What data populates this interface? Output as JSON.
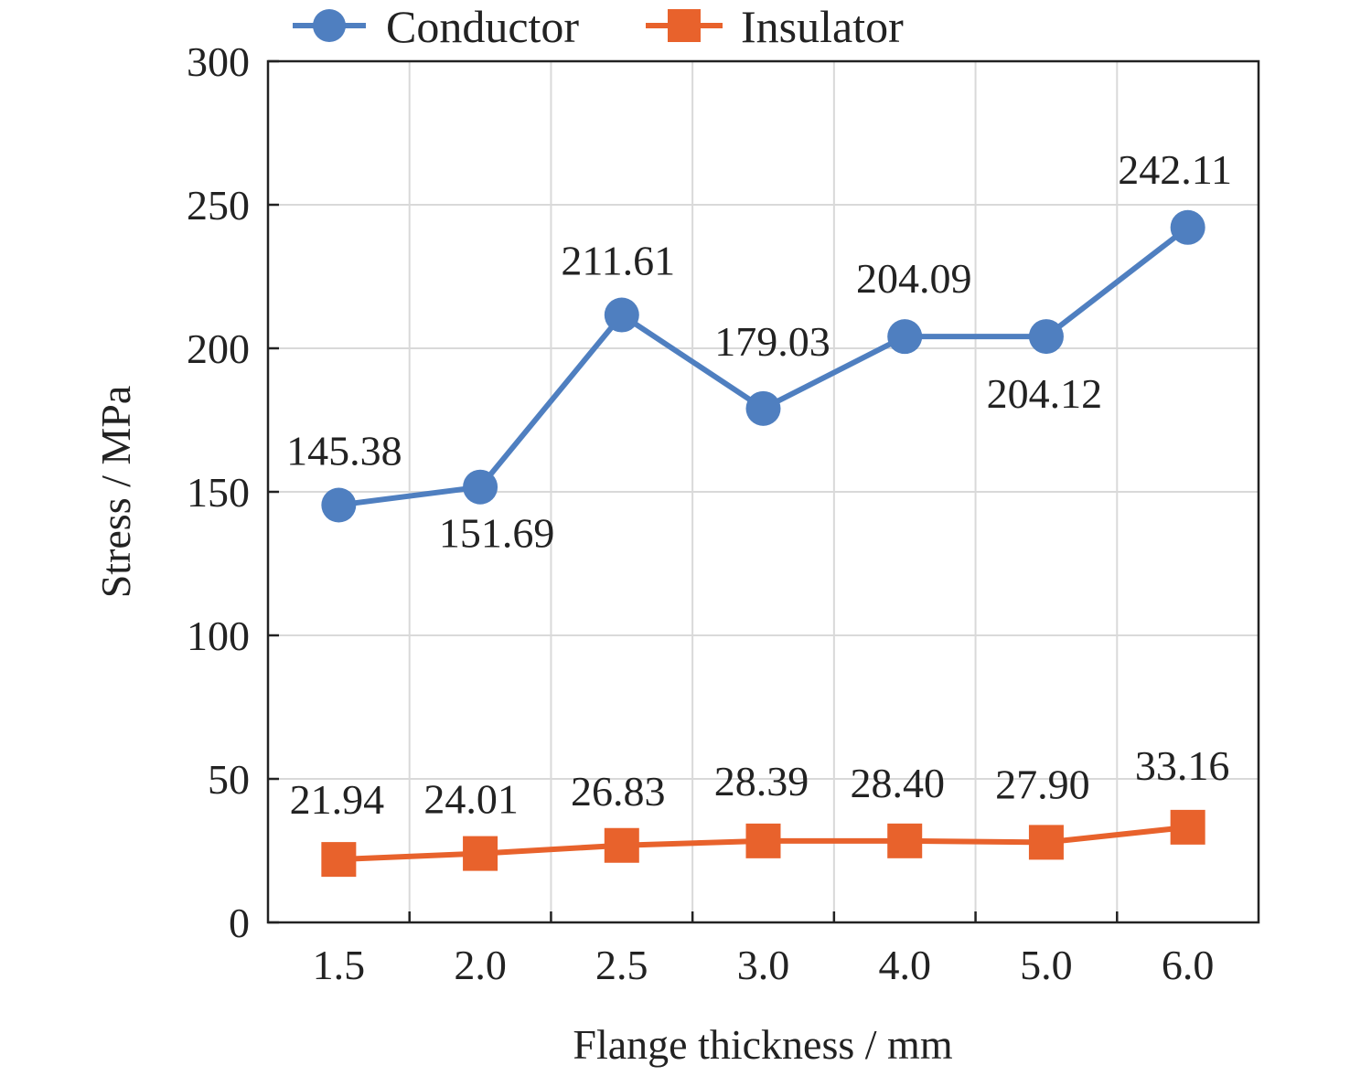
{
  "chart_data": {
    "type": "line",
    "categories": [
      "1.5",
      "2.0",
      "2.5",
      "3.0",
      "4.0",
      "5.0",
      "6.0"
    ],
    "xlabel": "Flange thickness / mm",
    "ylabel": "Stress / MPa",
    "ylim": [
      0,
      300
    ],
    "yticks": [
      "0",
      "50",
      "100",
      "150",
      "200",
      "250",
      "300"
    ],
    "grid": true,
    "legend_position": "top",
    "series": [
      {
        "name": "Conductor",
        "color": "#4f7fc0",
        "marker": "circle",
        "values": [
          145.38,
          151.69,
          211.61,
          179.03,
          204.09,
          204.12,
          242.11
        ],
        "labels": [
          "145.38",
          "151.69",
          "211.61",
          "179.03",
          "204.09",
          "204.12",
          "242.11"
        ]
      },
      {
        "name": "Insulator",
        "color": "#e8622c",
        "marker": "square",
        "values": [
          21.94,
          24.01,
          26.83,
          28.39,
          28.4,
          27.9,
          33.16
        ],
        "labels": [
          "21.94",
          "24.01",
          "26.83",
          "28.39",
          "28.40",
          "27.90",
          "33.16"
        ]
      }
    ]
  }
}
